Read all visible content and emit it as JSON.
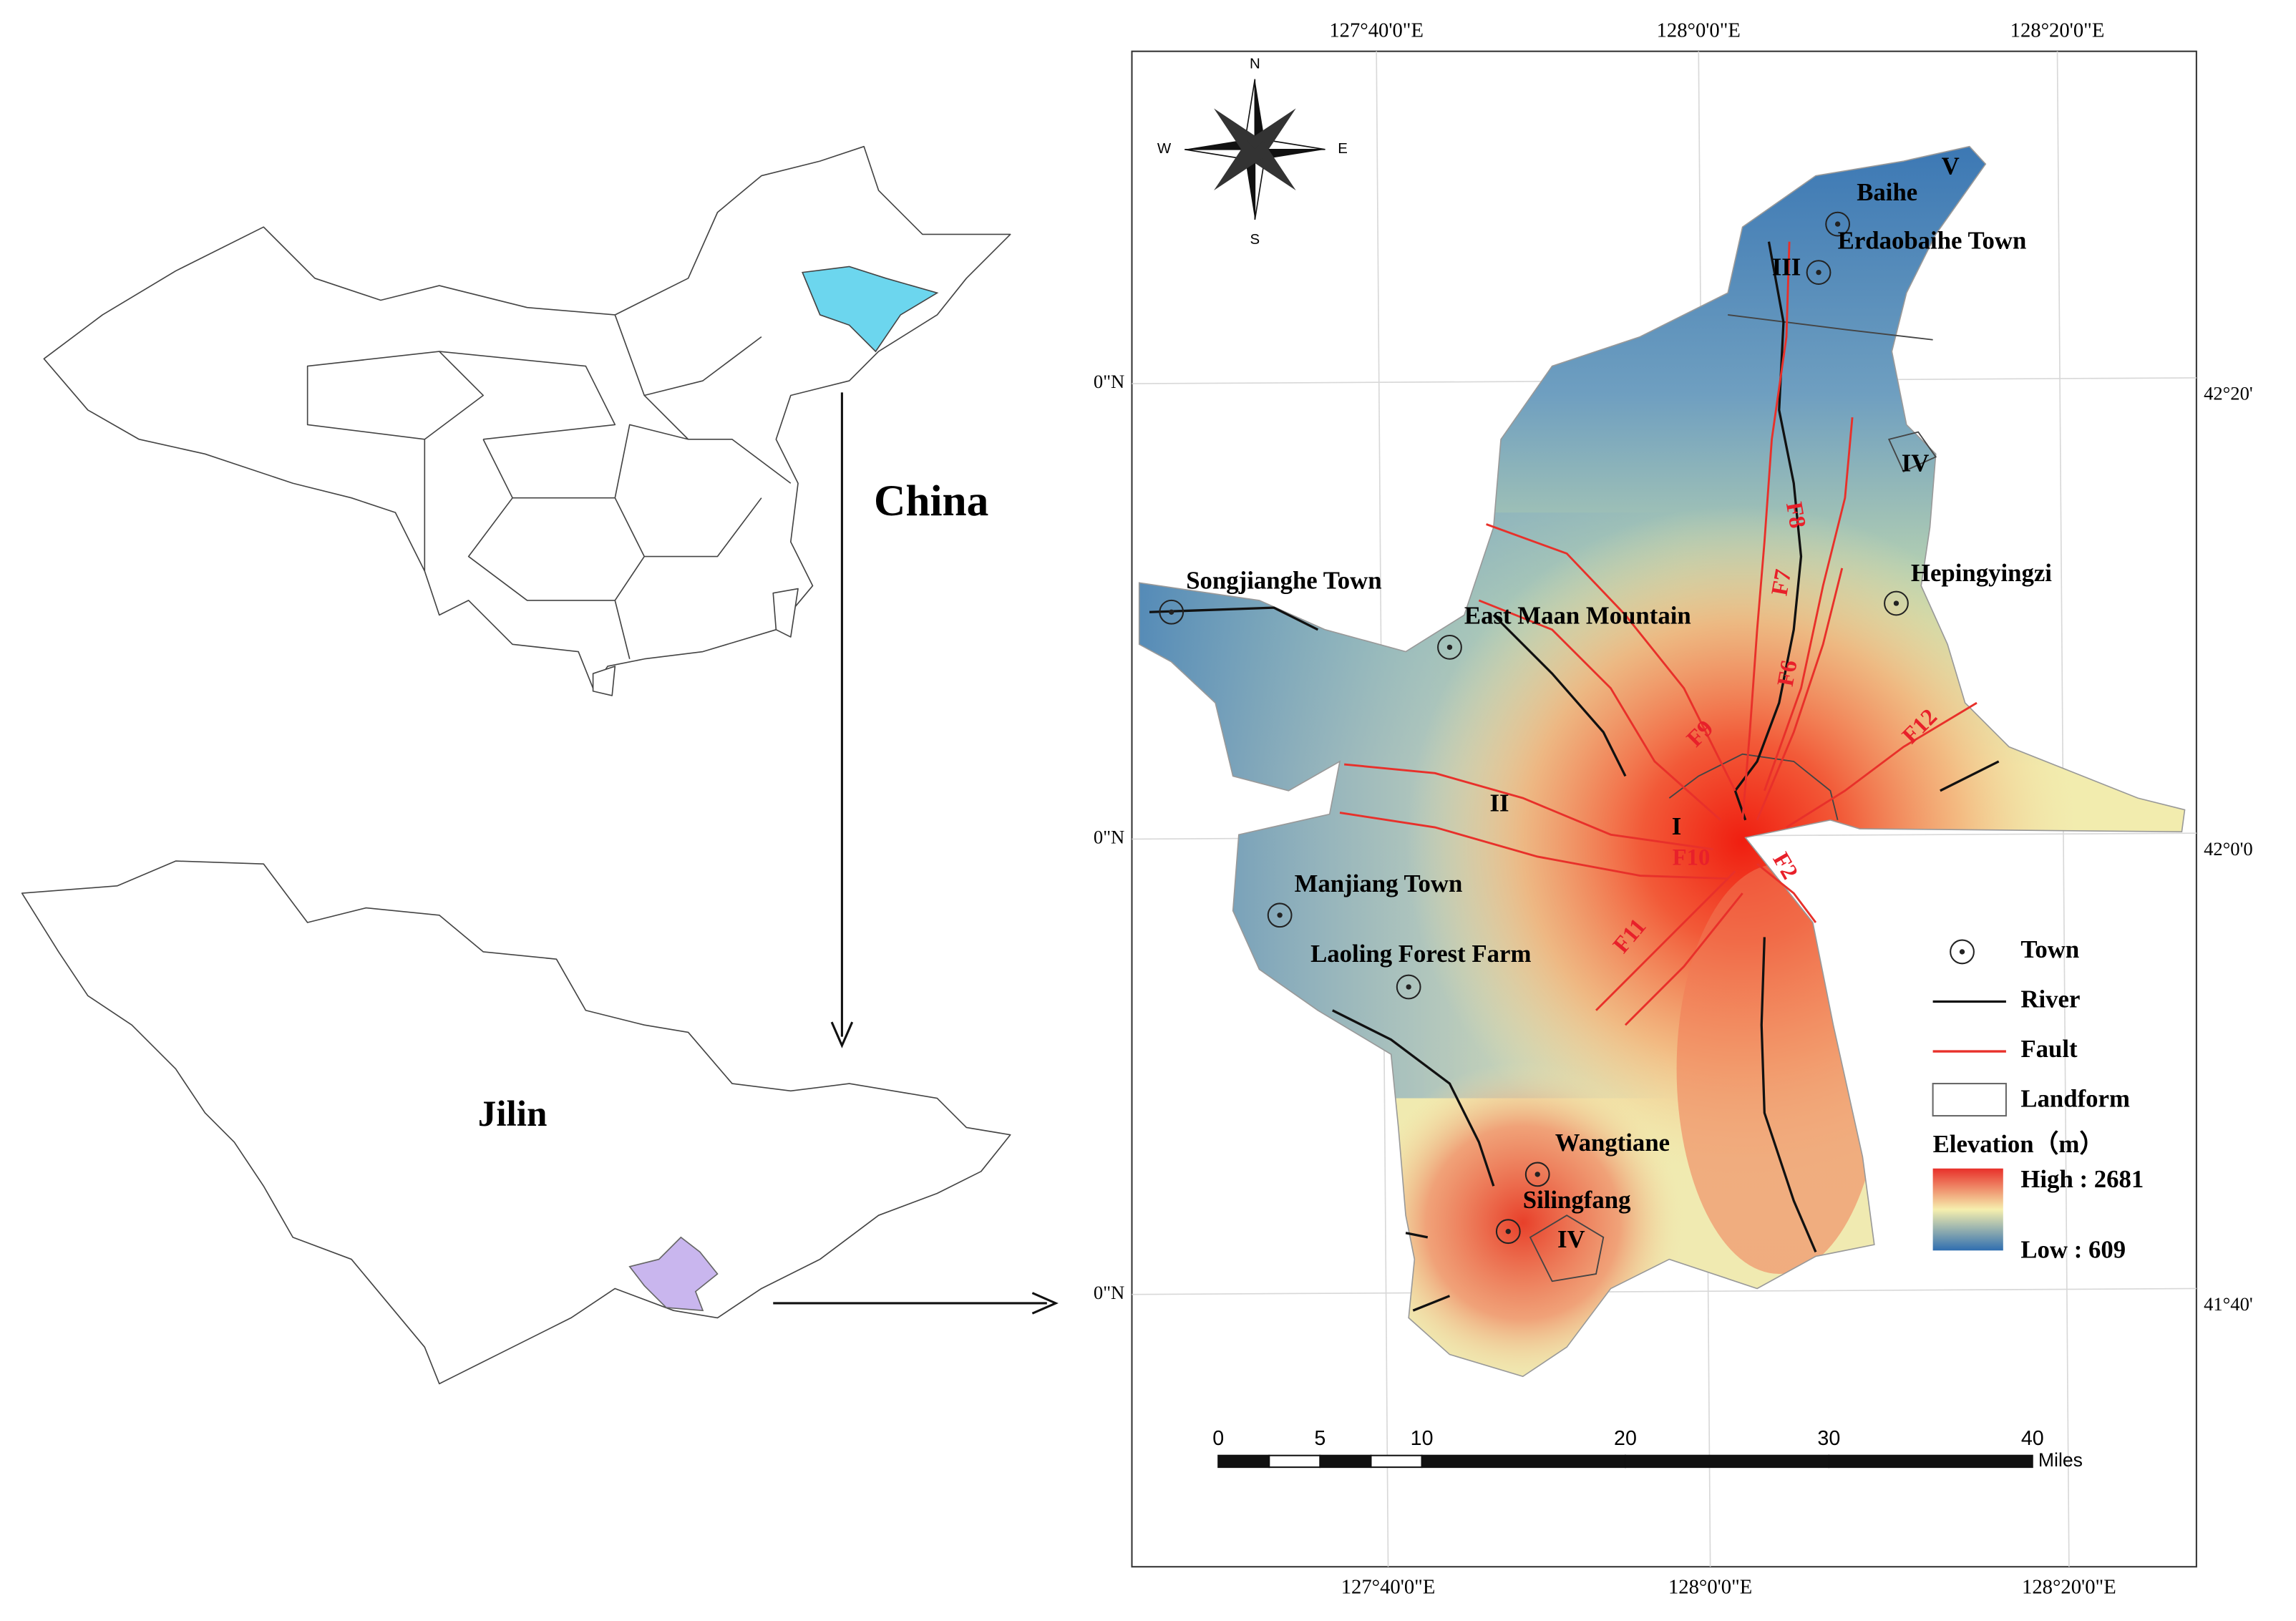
{
  "inset_maps": {
    "china_label": "China",
    "jilin_label": "Jilin"
  },
  "map": {
    "top_lon_labels": [
      "127°40'0\"E",
      "128°0'0\"E",
      "128°20'0\"E"
    ],
    "bottom_lon_labels": [
      "127°40'0\"E",
      "128°0'0\"E",
      "128°20'0\"E"
    ],
    "left_lat_labels": [
      "0\"N",
      "0\"N",
      "0\"N"
    ],
    "right_lat_labels": [
      "42°20'",
      "42°0'0",
      "41°40'"
    ],
    "compass": {
      "n": "N",
      "s": "S",
      "w": "W",
      "e": "E"
    },
    "towns": [
      "Baihe",
      "Erdaobaihe Town",
      "Hepingyingzi",
      "Songjianghe Town",
      "East Maan Mountain",
      "Manjiang Town",
      "Laoling Forest Farm",
      "Wangtiane",
      "Silingfang"
    ],
    "landforms": [
      "I",
      "II",
      "III",
      "IV",
      "IV",
      "V"
    ],
    "faults": [
      "F2",
      "F6",
      "F7",
      "F8",
      "F9",
      "F10",
      "F11",
      "F12"
    ],
    "scale_bar": {
      "ticks": [
        0,
        5,
        10,
        20,
        30,
        40
      ],
      "unit": "Miles"
    },
    "legend": {
      "items": [
        "Town",
        "River",
        "Fault",
        "Landform"
      ],
      "title": "Elevation（m）",
      "high": "High : 2681",
      "low": "Low : 609"
    }
  }
}
